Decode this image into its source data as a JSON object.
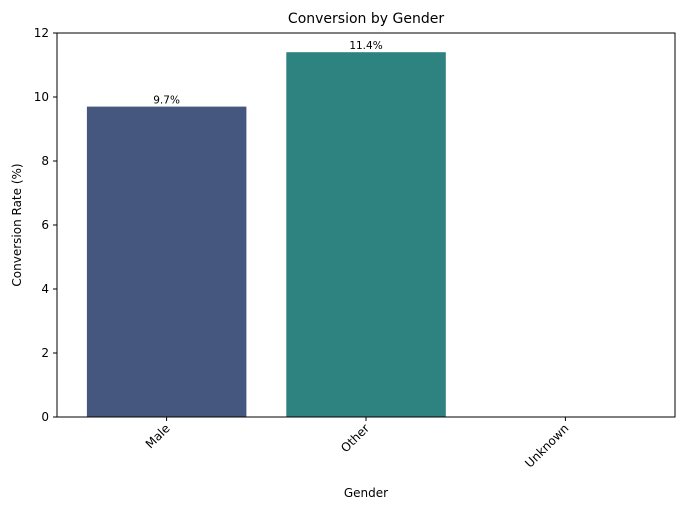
{
  "chart_data": {
    "type": "bar",
    "title": "Conversion by Gender",
    "xlabel": "Gender",
    "ylabel": "Conversion Rate (%)",
    "categories": [
      "Male",
      "Other",
      "Unknown"
    ],
    "values": [
      9.7,
      11.4,
      0
    ],
    "data_labels": [
      "9.7%",
      "11.4%",
      ""
    ],
    "colors": [
      "#46577f",
      "#2e8280",
      "#48b26c"
    ],
    "ylim": [
      0,
      12
    ],
    "yticks": [
      0,
      2,
      4,
      6,
      8,
      10,
      12
    ],
    "ytick_labels": [
      "0",
      "2",
      "4",
      "6",
      "8",
      "10",
      "12"
    ],
    "grid": false,
    "legend": "none"
  }
}
